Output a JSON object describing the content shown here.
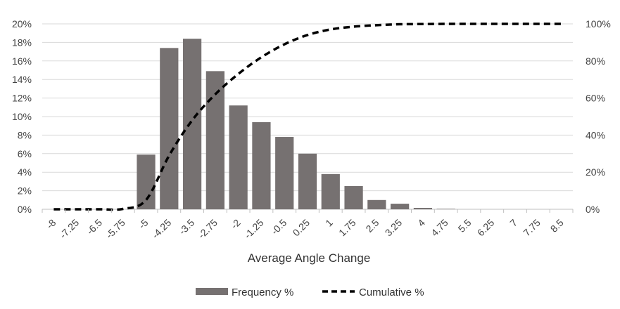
{
  "chart_data": {
    "type": "bar",
    "xlabel": "Average Angle Change",
    "categories": [
      "-8",
      "-7.25",
      "-6.5",
      "-5.75",
      "-5",
      "-4.25",
      "-3.5",
      "-2.75",
      "-2",
      "-1.25",
      "-0.5",
      "0.25",
      "1",
      "1.75",
      "2.5",
      "3.25",
      "4",
      "4.75",
      "5.5",
      "6.25",
      "7",
      "7.75",
      "8.5"
    ],
    "y_ticks": [
      "0%",
      "2%",
      "4%",
      "6%",
      "8%",
      "10%",
      "12%",
      "14%",
      "16%",
      "18%",
      "20%"
    ],
    "y2_ticks": [
      "0%",
      "20%",
      "40%",
      "60%",
      "80%",
      "100%"
    ],
    "ylim": [
      0,
      20
    ],
    "y2lim": [
      0,
      100
    ],
    "grid": true,
    "legend_position": "bottom",
    "series": [
      {
        "name": "Frequency %",
        "type": "bar",
        "axis": "left",
        "color": "#767171",
        "values": [
          0,
          0,
          0,
          0,
          5.9,
          17.4,
          18.4,
          14.9,
          11.2,
          9.4,
          7.8,
          6.0,
          3.8,
          2.5,
          1.0,
          0.6,
          0.15,
          0.05,
          0,
          0,
          0,
          0,
          0
        ]
      },
      {
        "name": "Cumulative %",
        "type": "line",
        "axis": "right",
        "style": "dashed",
        "color": "#000000",
        "values": [
          0,
          0,
          0,
          0.2,
          5,
          29,
          48,
          62,
          73,
          82,
          89,
          94,
          97,
          98.5,
          99.3,
          99.8,
          99.9,
          100,
          100,
          100,
          100,
          100,
          100
        ]
      }
    ]
  }
}
